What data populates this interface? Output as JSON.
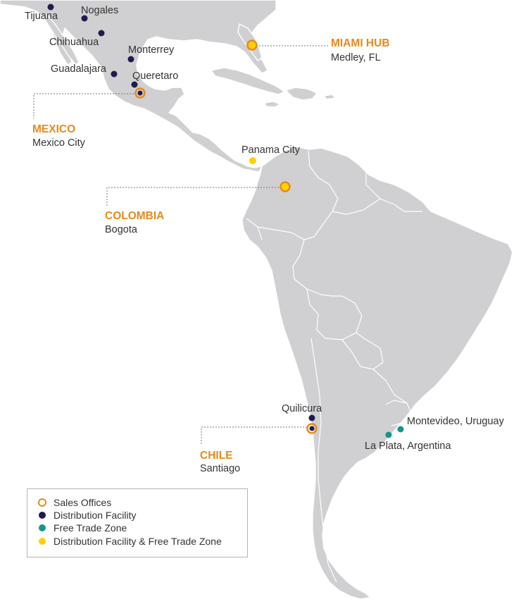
{
  "colors": {
    "land": "#d0d0d2",
    "sales_office": "#e8891b",
    "distribution": "#1f1b4d",
    "free_trade": "#14968c",
    "dist_and_free_trade": "#ffd100"
  },
  "cities": {
    "tijuana": "Tijuana",
    "nogales": "Nogales",
    "chihuahua": "Chihuahua",
    "monterrey": "Monterrey",
    "guadalajara": "Guadalajara",
    "queretaro": "Queretaro",
    "panama_city": "Panama City",
    "quilicura": "Quilicura",
    "montevideo": "Montevideo, Uruguay",
    "la_plata": "La Plata, Argentina"
  },
  "hubs": {
    "miami": {
      "title": "MIAMI HUB",
      "subtitle": "Medley, FL"
    },
    "mexico": {
      "title": "MEXICO",
      "subtitle": "Mexico City"
    },
    "colombia": {
      "title": "COLOMBIA",
      "subtitle": "Bogota"
    },
    "chile": {
      "title": "CHILE",
      "subtitle": "Santiago"
    }
  },
  "legend": {
    "sales_offices": "Sales Offices",
    "distribution_facility": "Distribution Facility",
    "free_trade_zone": "Free Trade Zone",
    "dist_and_free_trade": "Distribution Facility & Free Trade Zone"
  }
}
